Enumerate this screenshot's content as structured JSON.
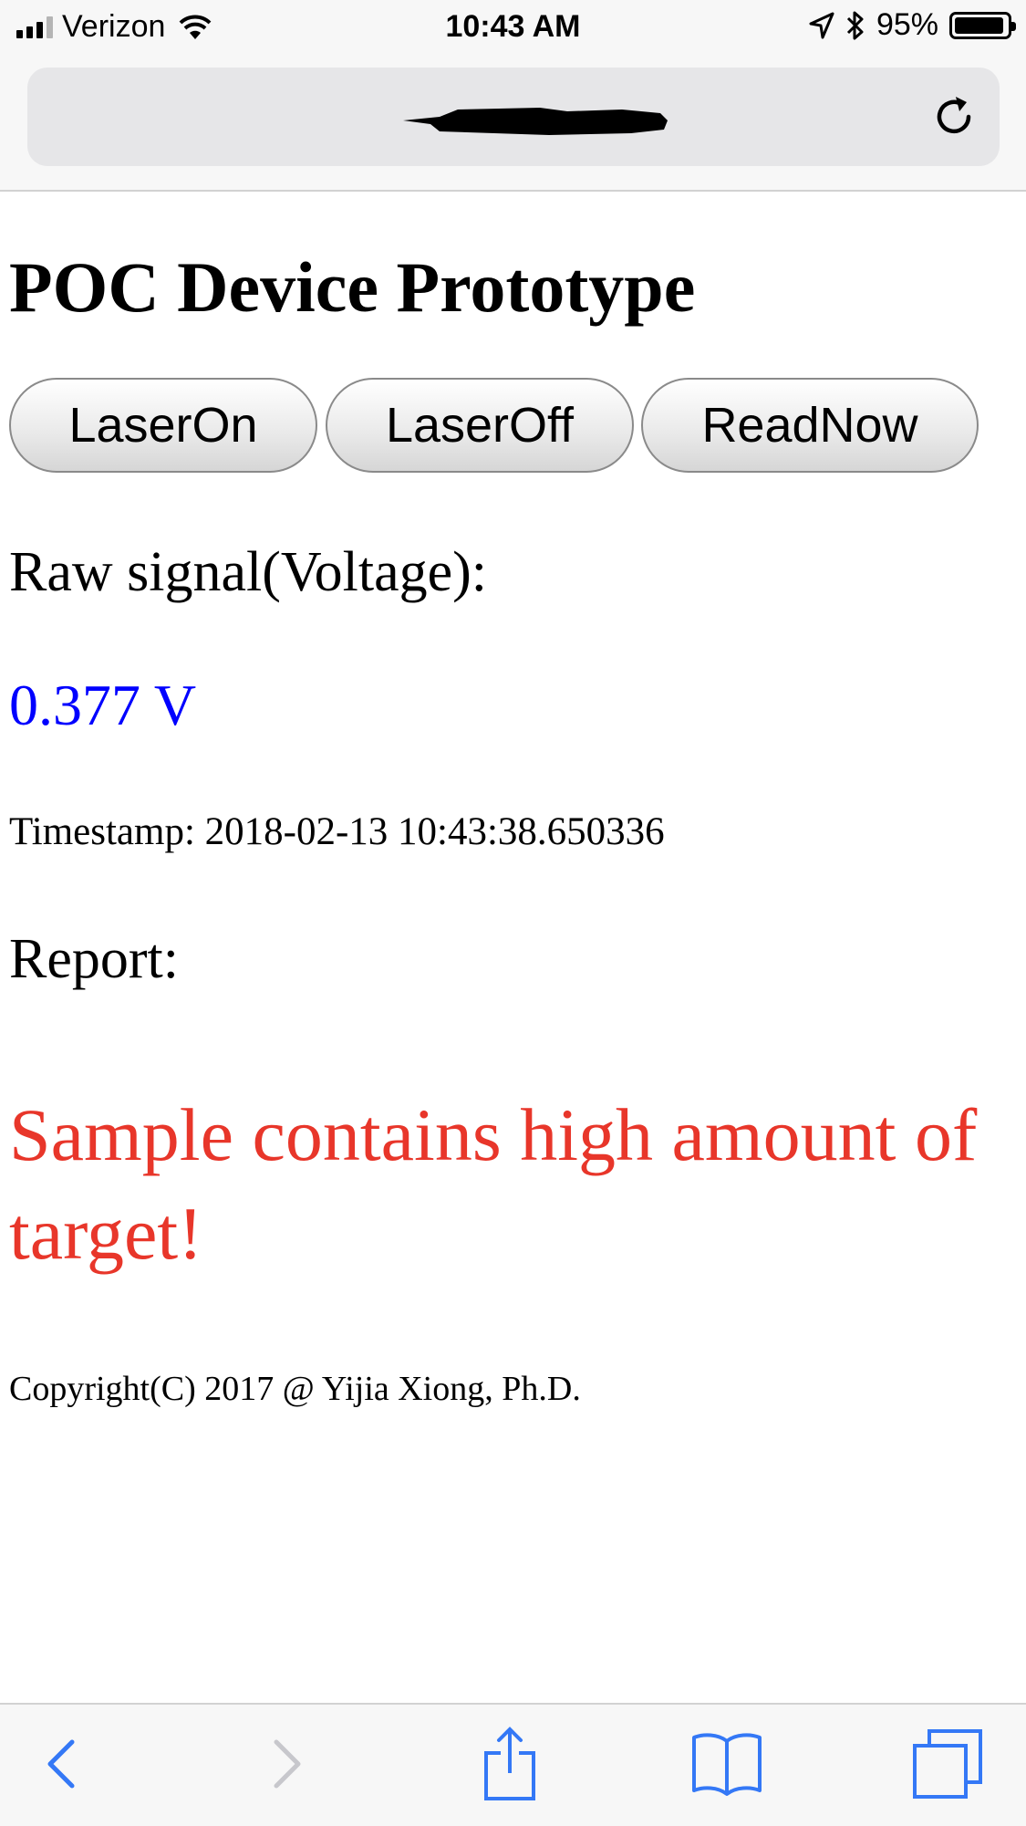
{
  "status_bar": {
    "carrier": "Verizon",
    "time": "10:43 AM",
    "battery": "95%",
    "battery_level": 0.95,
    "icons": [
      "signal-icon",
      "wifi-icon",
      "location-icon",
      "bluetooth-icon",
      "battery-icon"
    ]
  },
  "address_bar": {
    "url_state": "redacted",
    "reload_icon": "reload-icon"
  },
  "page": {
    "title": "POC Device Prototype",
    "buttons": {
      "laser_on": "LaserOn",
      "laser_off": "LaserOff",
      "read_now": "ReadNow"
    },
    "raw_signal_label": "Raw signal(Voltage):",
    "voltage_value": "0.377 V",
    "timestamp": "Timestamp: 2018-02-13 10:43:38.650336",
    "report_label": "Report:",
    "report_message": "Sample contains high amount of target!",
    "copyright": "Copyright(C) 2017 @ Yijia Xiong, Ph.D."
  },
  "colors": {
    "voltage": "#0000ff",
    "report_message": "#e8362a",
    "ios_tint": "#3478f6",
    "ios_disabled": "#c7c7cc"
  },
  "toolbar": {
    "icons": [
      "back-icon",
      "forward-icon",
      "share-icon",
      "bookmarks-icon",
      "tabs-icon"
    ],
    "forward_enabled": false
  }
}
